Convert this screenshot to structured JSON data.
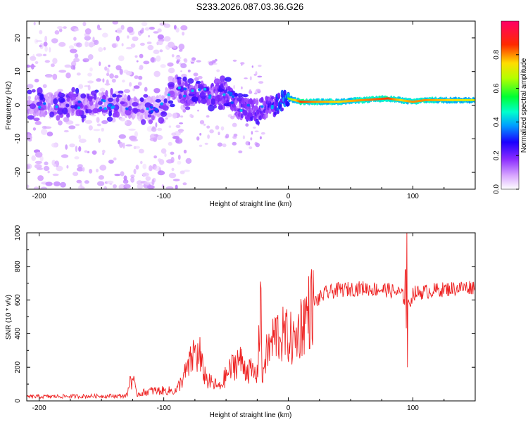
{
  "title": "S233.2026.087.03.36.G26",
  "chart_data": [
    {
      "type": "heatmap",
      "name": "spectrogram",
      "xlabel": "Height of straight line (km)",
      "ylabel": "Frequency (Hz)",
      "xlim": [
        -210,
        150
      ],
      "ylim": [
        -25,
        25
      ],
      "xticks": [
        -200,
        -100,
        0,
        100
      ],
      "xtick_labels": [
        "-200",
        "-100",
        "0",
        "100"
      ],
      "yticks": [
        -20,
        -10,
        0,
        10,
        20
      ],
      "ytick_labels": [
        "-20",
        "-10",
        "0",
        "10",
        "20"
      ],
      "colorbar": {
        "label": "Normalized spectral amplitude",
        "range": [
          0,
          1
        ],
        "ticks": [
          0.0,
          0.2,
          0.4,
          0.6,
          0.8
        ],
        "tick_labels": [
          "0.0",
          "0.2",
          "0.4",
          "0.6",
          "0.8"
        ],
        "colors": [
          "#ffffff",
          "#b45aff",
          "#6a00ff",
          "#0000ff",
          "#00ccff",
          "#00ff66",
          "#c8ff00",
          "#ffff00",
          "#ff2000",
          "#ff0066"
        ]
      },
      "centerline": {
        "x": [
          -210,
          -180,
          -150,
          -120,
          -100,
          -90,
          -80,
          -70,
          -60,
          -50,
          -40,
          -30,
          -20,
          -10,
          0,
          10,
          20,
          40,
          60,
          80,
          90,
          100,
          110,
          130,
          150
        ],
        "freq": [
          0,
          0,
          0.5,
          -1,
          0,
          6,
          3,
          4,
          3,
          4,
          -1,
          -1.5,
          -1,
          0,
          2,
          1,
          1,
          1,
          1.5,
          2,
          1.5,
          1,
          1.5,
          1.5,
          1.5
        ],
        "amp": [
          0.15,
          0.2,
          0.18,
          0.15,
          0.12,
          0.2,
          0.3,
          0.3,
          0.3,
          0.35,
          0.3,
          0.35,
          0.3,
          0.45,
          0.6,
          0.85,
          0.8,
          0.75,
          0.8,
          0.85,
          0.75,
          0.8,
          0.8,
          0.75,
          0.7
        ]
      }
    },
    {
      "type": "line",
      "name": "snr",
      "xlabel": "Height of straight line (km)",
      "ylabel": "SNR (10 * v/v)",
      "xlim": [
        -210,
        150
      ],
      "ylim": [
        0,
        1000
      ],
      "xticks": [
        -200,
        -100,
        0,
        100
      ],
      "xtick_labels": [
        "-200",
        "-100",
        "0",
        "100"
      ],
      "yticks": [
        0,
        200,
        400,
        600,
        800,
        1000
      ],
      "ytick_labels": [
        "0",
        "200",
        "400",
        "600",
        "800",
        "1000"
      ],
      "color": "#ee2222",
      "trend": {
        "x": [
          -210,
          -130,
          -125,
          -122,
          -110,
          -90,
          -80,
          -75,
          -72,
          -65,
          -55,
          -50,
          -40,
          -35,
          -25,
          -22,
          -21,
          -20,
          -19,
          -10,
          0,
          5,
          10,
          20,
          30,
          40,
          60,
          80,
          90,
          94,
          95,
          96,
          100,
          120,
          150
        ],
        "y": [
          25,
          30,
          140,
          40,
          60,
          60,
          200,
          300,
          250,
          120,
          80,
          150,
          250,
          200,
          150,
          650,
          80,
          200,
          250,
          400,
          380,
          350,
          450,
          580,
          640,
          660,
          670,
          660,
          640,
          600,
          300,
          550,
          640,
          660,
          680
        ]
      },
      "spikes": [
        {
          "x": 95,
          "y": 1000
        },
        {
          "x": 95.5,
          "y": 200
        },
        {
          "x": 94,
          "y": 780
        },
        {
          "x": -22,
          "y": 670
        },
        {
          "x": -127,
          "y": 145
        },
        {
          "x": -71,
          "y": 380
        }
      ]
    }
  ]
}
